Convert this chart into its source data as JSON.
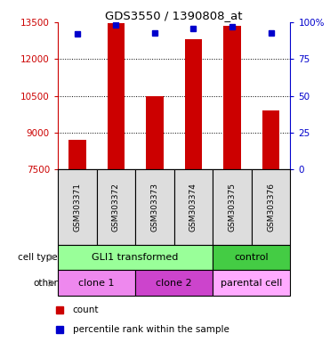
{
  "title": "GDS3550 / 1390808_at",
  "samples": [
    "GSM303371",
    "GSM303372",
    "GSM303373",
    "GSM303374",
    "GSM303375",
    "GSM303376"
  ],
  "counts": [
    8700,
    13450,
    10500,
    12800,
    13350,
    9900
  ],
  "percentile_ranks": [
    92,
    98,
    93,
    96,
    97,
    93
  ],
  "ymin": 7500,
  "ymax": 13500,
  "yticks": [
    7500,
    9000,
    10500,
    12000,
    13500
  ],
  "grid_lines": [
    9000,
    10500,
    12000
  ],
  "right_yticks": [
    0,
    25,
    50,
    75,
    100
  ],
  "right_ytick_labels": [
    "0",
    "25",
    "50",
    "75",
    "100%"
  ],
  "bar_color": "#cc0000",
  "dot_color": "#0000cc",
  "bar_width": 0.45,
  "cell_type_groups": [
    {
      "label": "GLI1 transformed",
      "span": [
        0,
        4
      ],
      "color": "#99ff99"
    },
    {
      "label": "control",
      "span": [
        4,
        6
      ],
      "color": "#44cc44"
    }
  ],
  "other_groups": [
    {
      "label": "clone 1",
      "span": [
        0,
        2
      ],
      "color": "#ee88ee"
    },
    {
      "label": "clone 2",
      "span": [
        2,
        4
      ],
      "color": "#cc44cc"
    },
    {
      "label": "parental cell",
      "span": [
        4,
        6
      ],
      "color": "#ffaaff"
    }
  ],
  "tick_label_color": "#cc0000",
  "right_axis_color": "#0000cc",
  "xtick_bg": "#dddddd",
  "legend_count_color": "#cc0000",
  "legend_dot_color": "#0000cc"
}
